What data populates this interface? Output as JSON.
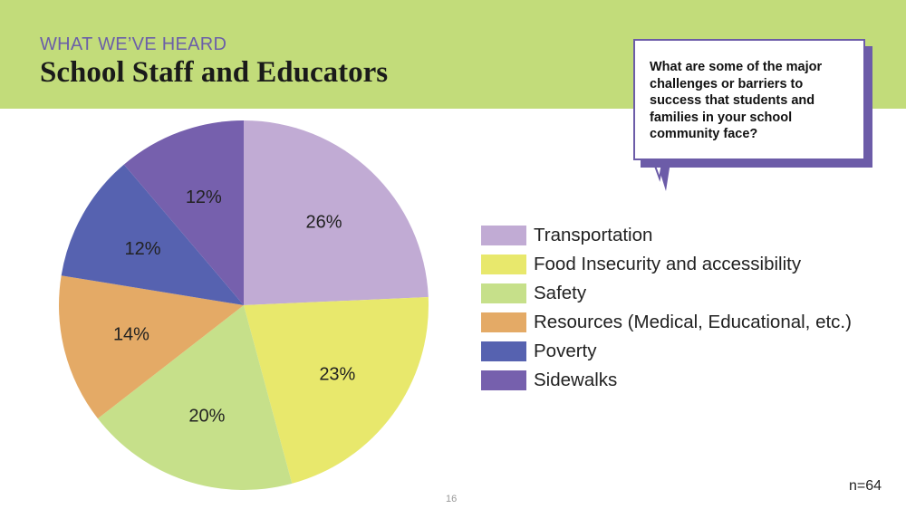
{
  "header": {
    "kicker": "WHAT WE’VE HEARD",
    "title": "School Staff and Educators",
    "band_color": "#c2dc7a"
  },
  "callout": {
    "question": "What are some of the major challenges or barriers to success that students and families in your school community face?",
    "accent_color": "#6c5ca8"
  },
  "chart_data": {
    "type": "pie",
    "title": "",
    "legend_position": "right",
    "slices": [
      {
        "label": "Transportation",
        "value": 26,
        "display": "26%",
        "color": "#c1abd4"
      },
      {
        "label": "Food Insecurity and accessibility",
        "value": 23,
        "display": "23%",
        "color": "#e8e86c"
      },
      {
        "label": "Safety",
        "value": 20,
        "display": "20%",
        "color": "#c6e08a"
      },
      {
        "label": "Resources (Medical, Educational, etc.)",
        "value": 14,
        "display": "14%",
        "color": "#e4aa66"
      },
      {
        "label": "Poverty",
        "value": 12,
        "display": "12%",
        "color": "#5662b0"
      },
      {
        "label": "Sidewalks",
        "value": 12,
        "display": "12%",
        "color": "#7660ad"
      }
    ]
  },
  "footer": {
    "sample_size": "n=64",
    "page_number": "16"
  }
}
